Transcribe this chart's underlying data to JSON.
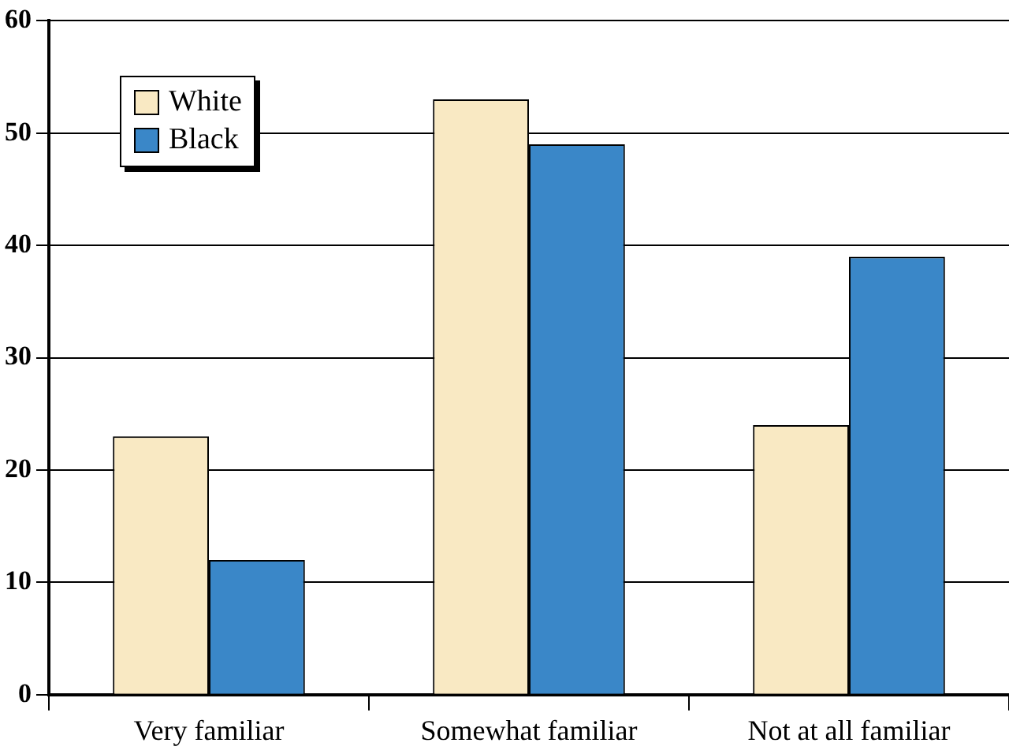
{
  "chart_data": {
    "type": "bar",
    "categories": [
      "Very familiar",
      "Somewhat familiar",
      "Not at all familiar"
    ],
    "series": [
      {
        "name": "White",
        "color": "#f9e9c3",
        "values": [
          23,
          53,
          24
        ]
      },
      {
        "name": "Black",
        "color": "#3a87c8",
        "values": [
          12,
          49,
          39
        ]
      }
    ],
    "ylim": [
      0,
      60
    ],
    "yticks": [
      0,
      10,
      20,
      30,
      40,
      50,
      60
    ],
    "grid": "y",
    "legend": "top left"
  }
}
